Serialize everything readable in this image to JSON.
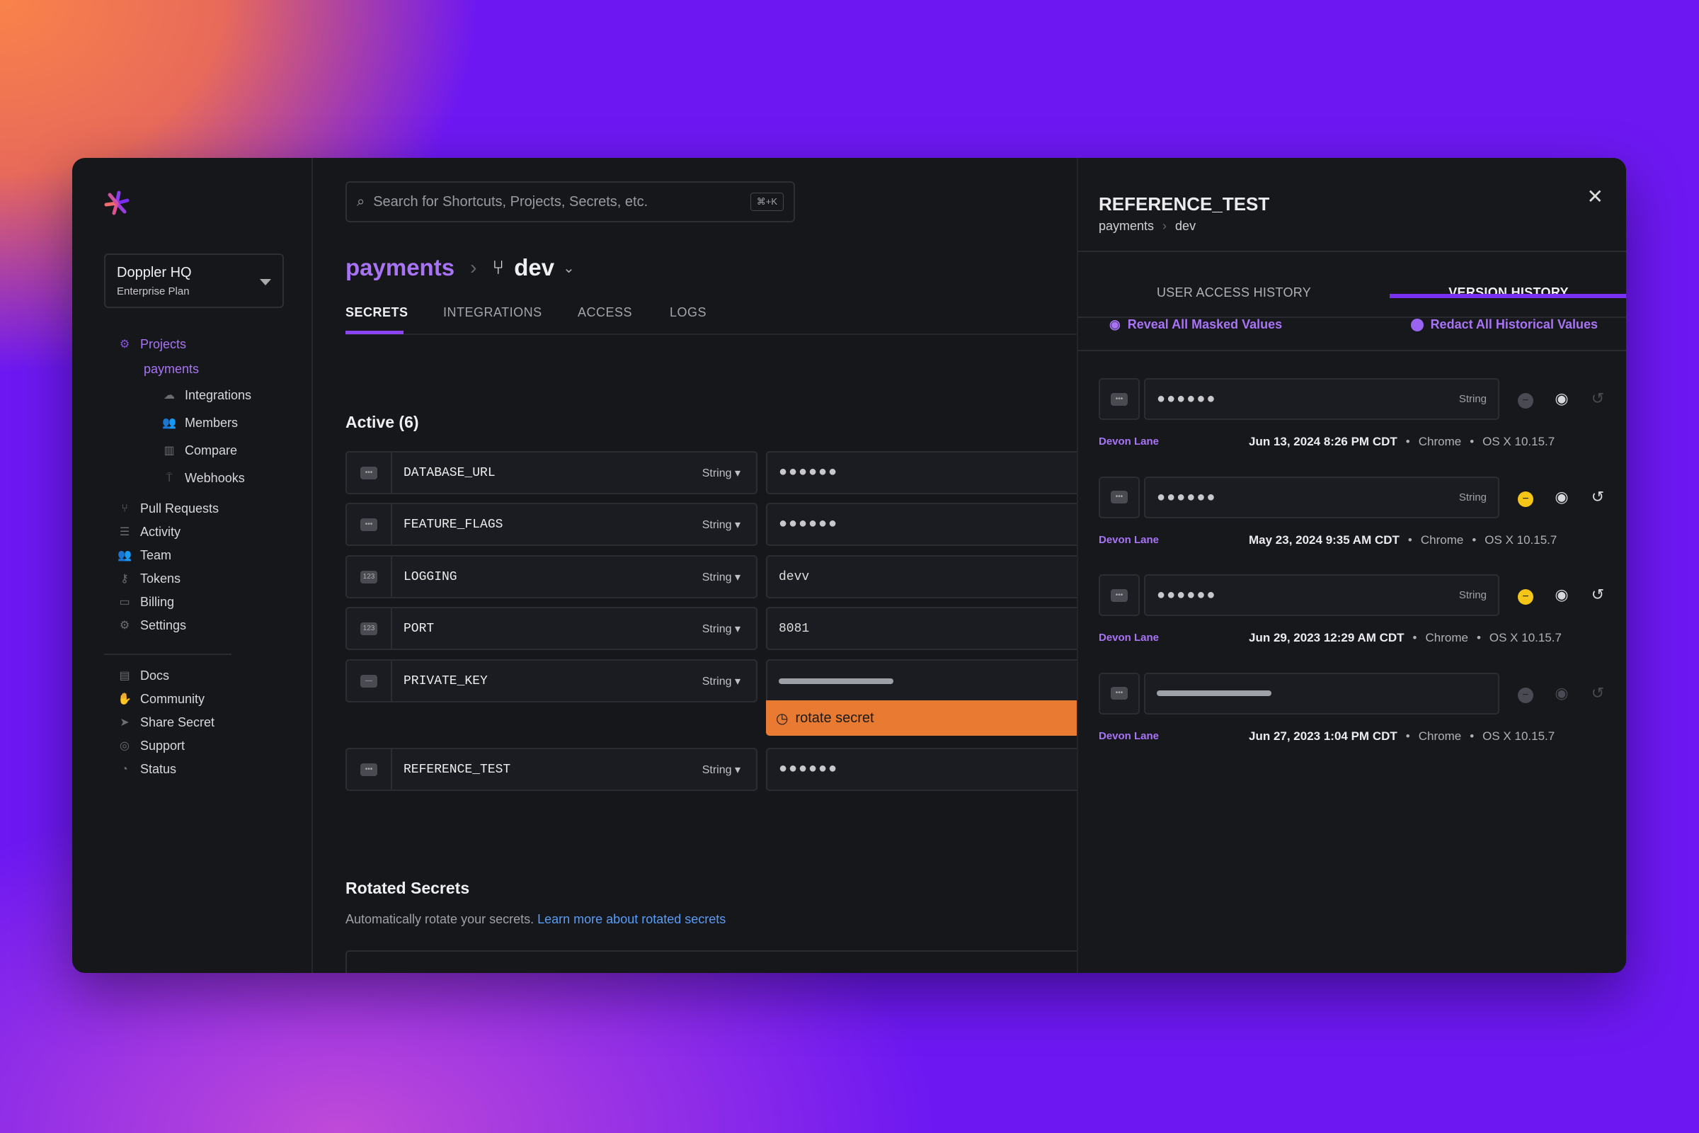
{
  "sidebar": {
    "org": {
      "name": "Doppler HQ",
      "plan": "Enterprise Plan"
    },
    "projects": "Projects",
    "project": "payments",
    "sub": [
      {
        "label": "Integrations",
        "icon": "cloud-icon"
      },
      {
        "label": "Members",
        "icon": "members-icon"
      },
      {
        "label": "Compare",
        "icon": "compare-icon"
      },
      {
        "label": "Webhooks",
        "icon": "webhook-icon"
      }
    ],
    "items": [
      {
        "label": "Pull Requests",
        "icon": "pull-request-icon"
      },
      {
        "label": "Activity",
        "icon": "activity-icon"
      },
      {
        "label": "Team",
        "icon": "team-icon"
      },
      {
        "label": "Tokens",
        "icon": "key-icon"
      },
      {
        "label": "Billing",
        "icon": "billing-icon"
      },
      {
        "label": "Settings",
        "icon": "gear-icon"
      }
    ],
    "footer": [
      {
        "label": "Docs",
        "icon": "docs-icon"
      },
      {
        "label": "Community",
        "icon": "community-icon"
      },
      {
        "label": "Share Secret",
        "icon": "send-icon"
      },
      {
        "label": "Support",
        "icon": "support-icon"
      },
      {
        "label": "Status",
        "icon": "status-icon"
      }
    ]
  },
  "search": {
    "placeholder": "Search for Shortcuts, Projects, Secrets, etc.",
    "shortcut": "⌘+K"
  },
  "breadcrumb": {
    "project": "payments",
    "config": "dev"
  },
  "tabs": [
    "SECRETS",
    "INTEGRATIONS",
    "ACCESS",
    "LOGS"
  ],
  "active_heading": "Active (6)",
  "secrets": [
    {
      "name": "DATABASE_URL",
      "type": "String",
      "value": "●●●●●●",
      "masked": true
    },
    {
      "name": "FEATURE_FLAGS",
      "type": "String",
      "value": "●●●●●●",
      "masked": true
    },
    {
      "name": "LOGGING",
      "type": "String",
      "value": "devv"
    },
    {
      "name": "PORT",
      "type": "String",
      "value": "8081"
    },
    {
      "name": "PRIVATE_KEY",
      "type": "String",
      "value": "",
      "redacted": true,
      "note": "rotate secret"
    },
    {
      "name": "REFERENCE_TEST",
      "type": "String",
      "value": "●●●●●●",
      "masked": true
    }
  ],
  "rotated": {
    "title": "Rotated Secrets",
    "desc": "Automatically rotate your secrets.",
    "link": "Learn more about rotated secrets"
  },
  "panel": {
    "title": "REFERENCE_TEST",
    "crumb_project": "payments",
    "crumb_config": "dev",
    "tabs": [
      "USER ACCESS HISTORY",
      "VERSION HISTORY"
    ],
    "active_tab": "VERSION HISTORY",
    "reveal": "Reveal All Masked Values",
    "redact": "Redact All Historical Values",
    "versions": [
      {
        "value": "●●●●●●",
        "type": "String",
        "user": "Devon Lane",
        "date": "Jun 13, 2024 8:26 PM CDT",
        "browser": "Chrome",
        "os": "OS X 10.15.7",
        "redact_active": false
      },
      {
        "value": "●●●●●●",
        "type": "String",
        "user": "Devon Lane",
        "date": "May 23, 2024 9:35 AM CDT",
        "browser": "Chrome",
        "os": "OS X 10.15.7",
        "redact_active": true
      },
      {
        "value": "●●●●●●",
        "type": "String",
        "user": "Devon Lane",
        "date": "Jun 29, 2023 12:29 AM CDT",
        "browser": "Chrome",
        "os": "OS X 10.15.7",
        "redact_active": true
      },
      {
        "value": "",
        "type": "",
        "user": "Devon Lane",
        "date": "Jun 27, 2023 1:04 PM CDT",
        "browser": "Chrome",
        "os": "OS X 10.15.7",
        "redacted": true
      }
    ]
  },
  "colors": {
    "accent": "#9a64f0",
    "rotate": "#e87a32",
    "redact_active": "#f5c518",
    "link": "#5b9cf5"
  }
}
